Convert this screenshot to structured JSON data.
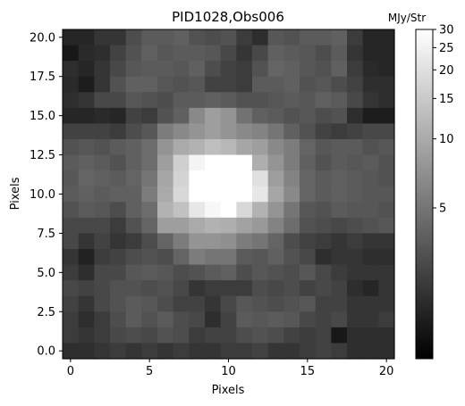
{
  "chart_data": {
    "type": "heatmap",
    "title": "PID1028,Obs006",
    "xlabel": "Pixels",
    "ylabel": "Pixels",
    "colorbar_label": "MJy/Str",
    "colormap": "gray",
    "color_scale": "log",
    "value_range": [
      1.1,
      30
    ],
    "x_range": [
      -0.5,
      20.5
    ],
    "y_range": [
      -0.5,
      20.5
    ],
    "x_ticks": [
      0,
      5,
      10,
      15,
      20
    ],
    "x_tick_labels": [
      "0",
      "5",
      "10",
      "15",
      "20"
    ],
    "y_ticks": [
      0.0,
      2.5,
      5.0,
      7.5,
      10.0,
      12.5,
      15.0,
      17.5,
      20.0
    ],
    "y_tick_labels": [
      "0.0",
      "2.5",
      "5.0",
      "7.5",
      "10.0",
      "12.5",
      "15.0",
      "17.5",
      "20.0"
    ],
    "colorbar_ticks": [
      5,
      10,
      15,
      20,
      25,
      30
    ],
    "colorbar_tick_labels": [
      "5",
      "10",
      "15",
      "20",
      "25",
      "30"
    ],
    "rows_top_to_bottom": [
      [
        1.8,
        1.8,
        2.2,
        2.2,
        3.0,
        3.6,
        3.6,
        3.8,
        3.2,
        3.0,
        3.2,
        2.4,
        2.0,
        3.4,
        3.2,
        3.6,
        3.6,
        3.8,
        2.4,
        1.8,
        1.8
      ],
      [
        1.5,
        1.9,
        2.0,
        2.6,
        3.2,
        3.8,
        3.4,
        3.6,
        3.6,
        3.4,
        2.8,
        2.2,
        2.8,
        3.8,
        3.6,
        3.4,
        3.0,
        3.6,
        2.2,
        1.8,
        1.8
      ],
      [
        2.0,
        1.8,
        2.2,
        2.8,
        3.4,
        3.6,
        3.6,
        3.4,
        3.8,
        3.0,
        2.6,
        2.4,
        3.2,
        4.0,
        3.8,
        3.4,
        3.2,
        3.8,
        2.4,
        1.9,
        1.8
      ],
      [
        1.9,
        1.6,
        2.2,
        3.2,
        3.8,
        3.8,
        3.4,
        3.2,
        3.4,
        2.6,
        2.6,
        2.4,
        3.6,
        3.6,
        3.8,
        3.2,
        3.4,
        3.0,
        2.6,
        2.0,
        2.0
      ],
      [
        2.0,
        2.2,
        2.8,
        2.8,
        3.4,
        3.2,
        3.0,
        3.6,
        3.6,
        3.8,
        3.6,
        3.2,
        3.2,
        3.4,
        3.6,
        3.4,
        3.8,
        3.6,
        2.8,
        2.2,
        2.0
      ],
      [
        1.8,
        1.8,
        1.9,
        1.8,
        2.6,
        2.4,
        3.2,
        3.8,
        6.5,
        8.5,
        7.5,
        4.8,
        3.8,
        3.6,
        3.2,
        3.4,
        3.0,
        3.2,
        2.0,
        1.6,
        1.6
      ],
      [
        2.6,
        2.6,
        2.6,
        2.4,
        3.0,
        3.4,
        5.5,
        6.5,
        7.5,
        8.5,
        7.5,
        6.5,
        6.0,
        5.0,
        3.8,
        3.2,
        2.6,
        2.4,
        2.6,
        2.8,
        2.8
      ],
      [
        3.2,
        3.4,
        3.2,
        3.6,
        3.8,
        4.5,
        7.5,
        10.0,
        11.0,
        13.0,
        12.0,
        9.5,
        8.5,
        6.5,
        5.5,
        4.0,
        3.4,
        3.6,
        3.6,
        3.2,
        3.4
      ],
      [
        3.6,
        3.8,
        3.6,
        3.2,
        3.8,
        4.5,
        8.5,
        16.0,
        26.0,
        30.0,
        30.0,
        30.0,
        10.5,
        7.5,
        5.5,
        3.8,
        3.2,
        3.6,
        3.4,
        3.6,
        3.2
      ],
      [
        3.4,
        4.0,
        3.8,
        3.6,
        4.0,
        5.0,
        9.5,
        17.0,
        30.0,
        30.0,
        30.0,
        30.0,
        20.0,
        8.5,
        6.0,
        4.0,
        3.6,
        3.8,
        3.6,
        3.4,
        3.2
      ],
      [
        3.6,
        3.8,
        3.6,
        3.8,
        3.8,
        5.5,
        10.0,
        18.0,
        30.0,
        30.0,
        30.0,
        30.0,
        22.0,
        9.5,
        6.5,
        4.0,
        3.6,
        3.8,
        3.6,
        3.4,
        3.4
      ],
      [
        3.2,
        3.6,
        3.4,
        3.0,
        3.8,
        4.5,
        11.0,
        13.5,
        22.0,
        27.0,
        30.0,
        18.0,
        11.0,
        7.5,
        5.0,
        3.4,
        3.2,
        3.6,
        3.4,
        3.4,
        3.2
      ],
      [
        2.8,
        2.8,
        2.8,
        2.4,
        3.2,
        4.0,
        8.5,
        8.5,
        10.0,
        11.0,
        10.5,
        9.0,
        8.0,
        6.0,
        4.5,
        3.2,
        3.0,
        2.8,
        3.0,
        3.2,
        3.4
      ],
      [
        2.8,
        2.2,
        2.6,
        2.2,
        2.4,
        3.0,
        4.0,
        5.5,
        7.5,
        7.5,
        7.0,
        5.5,
        5.0,
        4.0,
        3.0,
        2.6,
        2.4,
        2.2,
        2.4,
        2.2,
        2.2
      ],
      [
        2.2,
        1.7,
        2.4,
        2.6,
        3.0,
        3.2,
        3.0,
        4.0,
        5.5,
        5.0,
        5.0,
        3.6,
        3.4,
        3.8,
        3.2,
        2.8,
        2.0,
        2.2,
        2.2,
        2.0,
        2.0
      ],
      [
        2.4,
        2.0,
        2.8,
        2.8,
        3.4,
        3.6,
        3.4,
        3.0,
        3.2,
        3.6,
        3.8,
        3.0,
        3.4,
        3.2,
        3.0,
        3.4,
        2.8,
        2.4,
        2.2,
        2.2,
        2.2
      ],
      [
        2.8,
        2.6,
        2.8,
        3.2,
        3.2,
        3.0,
        3.2,
        2.8,
        2.2,
        2.4,
        2.4,
        2.4,
        3.0,
        2.8,
        3.0,
        2.6,
        2.8,
        2.6,
        2.0,
        1.8,
        2.2
      ],
      [
        2.6,
        2.2,
        2.8,
        3.2,
        3.6,
        3.4,
        3.0,
        2.6,
        2.6,
        2.2,
        2.8,
        3.4,
        3.2,
        3.0,
        3.2,
        3.4,
        2.6,
        2.6,
        2.2,
        2.2,
        2.2
      ],
      [
        2.4,
        2.0,
        2.4,
        3.0,
        3.6,
        3.2,
        3.6,
        3.0,
        2.8,
        2.0,
        2.6,
        3.6,
        3.4,
        3.6,
        3.4,
        2.8,
        2.6,
        2.8,
        2.2,
        2.2,
        2.4
      ],
      [
        2.4,
        2.2,
        2.4,
        2.8,
        3.0,
        2.8,
        3.2,
        3.0,
        2.4,
        2.6,
        2.6,
        3.0,
        3.2,
        3.0,
        2.6,
        2.4,
        2.6,
        1.5,
        2.0,
        2.0,
        2.0
      ],
      [
        2.0,
        2.0,
        2.2,
        2.4,
        2.2,
        2.4,
        2.2,
        2.4,
        2.2,
        2.2,
        2.4,
        2.4,
        2.6,
        2.2,
        2.2,
        2.4,
        2.6,
        2.4,
        2.0,
        2.0,
        2.0
      ]
    ]
  }
}
